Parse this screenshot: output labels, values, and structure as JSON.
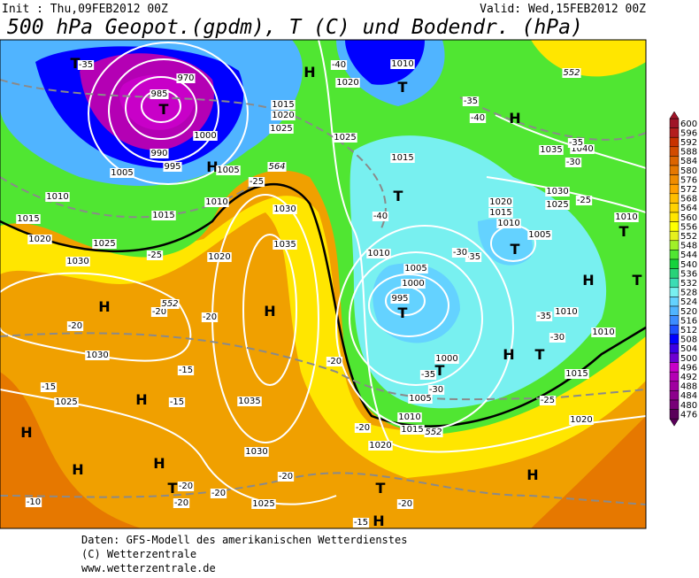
{
  "header": {
    "init": "Init : Thu,09FEB2012 00Z",
    "valid": "Valid: Wed,15FEB2012 00Z",
    "title": "500 hPa Geopot.(gpdm), T (C) und Bodendr. (hPa)"
  },
  "colorbar": {
    "ticks": [
      600,
      596,
      592,
      588,
      584,
      580,
      576,
      572,
      568,
      564,
      560,
      556,
      552,
      548,
      544,
      540,
      536,
      532,
      528,
      524,
      520,
      516,
      512,
      508,
      504,
      500,
      496,
      492,
      488,
      484,
      480,
      476
    ],
    "colors": [
      "#a01428",
      "#b41e1e",
      "#c83200",
      "#d24b00",
      "#dc6400",
      "#e67800",
      "#f08c00",
      "#ffa000",
      "#ffbe00",
      "#ffd200",
      "#ffe600",
      "#ffff00",
      "#e6f01e",
      "#a0f028",
      "#50e632",
      "#14d23c",
      "#28d278",
      "#3cdcb4",
      "#78f0f0",
      "#64d2ff",
      "#50b4ff",
      "#3c8cff",
      "#1e50ff",
      "#0000ff",
      "#3c00e6",
      "#6e00d2",
      "#c800c8",
      "#b400b4",
      "#a000a0",
      "#8c008c",
      "#780078",
      "#5a005a"
    ]
  },
  "map_labels": [
    "H",
    "H",
    "H",
    "H",
    "H",
    "H",
    "H",
    "H",
    "H",
    "H",
    "H",
    "H",
    "H",
    "T",
    "T",
    "T",
    "T",
    "T",
    "T",
    "T",
    "T",
    "T",
    "T",
    "T",
    "T",
    "1010",
    "1020",
    "1015",
    "1020",
    "1025",
    "1000",
    "1005",
    "1025",
    "1015",
    "1005",
    "995",
    "990",
    "985",
    "970",
    "1010",
    "1010",
    "1030",
    "1015",
    "1015",
    "1020",
    "1025",
    "1030",
    "1035",
    "1020",
    "1010",
    "1005",
    "1000",
    "995",
    "1035",
    "1030",
    "1025",
    "1040",
    "1020",
    "1015",
    "1010",
    "1005",
    "1010",
    "1010",
    "1010",
    "1030",
    "1025",
    "1035",
    "1030",
    "1025",
    "1000",
    "1005",
    "1010",
    "1015",
    "1020",
    "1015",
    "1020",
    "-35",
    "-40",
    "-35",
    "-40",
    "-35",
    "-30",
    "-25",
    "-40",
    "-35",
    "-35",
    "-30",
    "-25",
    "-20",
    "-20",
    "-15",
    "-15",
    "-15",
    "-20",
    "-20",
    "-20",
    "-20",
    "-20",
    "-20",
    "-10",
    "-15",
    "-20",
    "-30",
    "-35",
    "-25",
    "-25",
    "-20",
    "-30",
    "552",
    "564",
    "552",
    "552"
  ],
  "footer": [
    "Daten: GFS-Modell des amerikanischen Wetterdienstes",
    "(C) Wetterzentrale",
    "www.wetterzentrale.de"
  ]
}
